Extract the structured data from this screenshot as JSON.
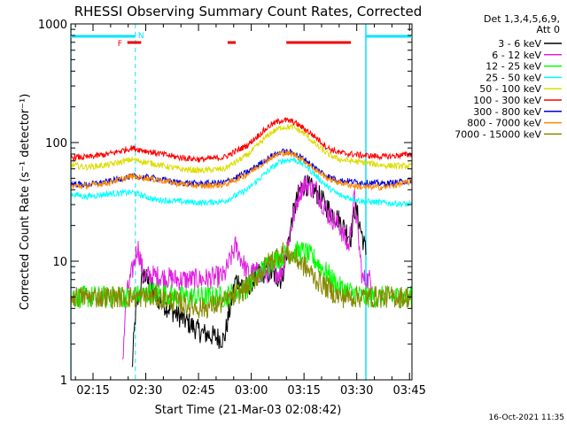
{
  "chart_data": {
    "type": "line",
    "title": "RHESSI Observing Summary Count Rates, Corrected",
    "xlabel": "Start Time (21-Mar-03 02:08:42)",
    "ylabel": "Corrected Count Rate (s⁻¹ detector⁻¹)",
    "xlim": [
      8.7,
      38.3
    ],
    "ylim": [
      1,
      1000
    ],
    "y_scale": "log",
    "x_ticks": [
      "02:15",
      "02:30",
      "02:45",
      "03:00",
      "03:15",
      "03:30",
      "03:45"
    ],
    "y_ticks": [
      "1",
      "10",
      "100",
      "1000"
    ],
    "legend_title": [
      "Det 1,3,4,5,6,9,",
      "Att 0"
    ],
    "timestamp": "16-Oct-2021 11:35",
    "flags": {
      "N_label": "N",
      "F_label": "F",
      "night": [
        [
          8.7,
          14.3
        ],
        [
          34.3,
          38.3
        ]
      ],
      "flare": [
        [
          13.6,
          14.8
        ],
        [
          22.3,
          23.0
        ],
        [
          27.4,
          33.0
        ]
      ],
      "vlines_solid": [
        8.7,
        34.3
      ],
      "vlines_dashed": [
        14.3,
        38.3
      ]
    },
    "series": [
      {
        "name": "3 - 6 keV",
        "color": "#000000",
        "x": [
          14.0,
          14.3,
          15.0,
          16.0,
          18.0,
          20.0,
          22.0,
          23.0,
          24.0,
          25.0,
          26.0,
          27.0,
          28.0,
          28.5,
          29.0,
          30.0,
          31.0,
          32.0,
          33.0,
          33.3,
          33.6,
          34.3
        ],
        "y": [
          1.2,
          3.5,
          8.0,
          5.0,
          3.5,
          2.5,
          2.2,
          7.0,
          6.0,
          8.0,
          8.0,
          7.0,
          25.0,
          38.0,
          45.0,
          38.0,
          28.0,
          22.0,
          16.0,
          28.0,
          24.0,
          12.0
        ]
      },
      {
        "name": "6 - 12 keV",
        "color": "#e020e0",
        "x": [
          13.2,
          13.5,
          14.0,
          14.5,
          15.0,
          16.0,
          18.0,
          20.0,
          22.0,
          23.0,
          24.0,
          25.0,
          26.0,
          27.0,
          27.5,
          28.5,
          29.0,
          30.0,
          31.0,
          32.0,
          32.8,
          33.3,
          34.0,
          34.9
        ],
        "y": [
          1.5,
          5.0,
          8.0,
          13.5,
          7.5,
          7.5,
          7.0,
          7.0,
          7.5,
          13.5,
          8.0,
          8.0,
          8.0,
          8.0,
          14.0,
          38.0,
          45.0,
          40.0,
          25.0,
          20.0,
          13.0,
          35.0,
          7.0,
          7.0
        ]
      },
      {
        "name": "12 - 25 keV",
        "color": "#00ff00",
        "x": [
          8.7,
          12.0,
          14.0,
          16.0,
          18.0,
          20.0,
          22.0,
          24.0,
          26.0,
          27.0,
          28.0,
          29.0,
          30.0,
          32.0,
          34.0,
          36.0,
          38.3
        ],
        "y": [
          5.0,
          5.0,
          5.0,
          5.5,
          5.0,
          5.0,
          5.0,
          6.0,
          10.0,
          11.0,
          12.0,
          12.0,
          10.0,
          6.0,
          5.0,
          5.0,
          5.0
        ]
      },
      {
        "name": "25 - 50 keV",
        "color": "#00ffff",
        "x": [
          8.7,
          10.0,
          12.0,
          14.0,
          16.0,
          18.0,
          20.0,
          22.0,
          24.0,
          26.0,
          27.0,
          28.0,
          29.0,
          30.0,
          31.0,
          32.0,
          34.0,
          36.0,
          38.3
        ],
        "y": [
          37.0,
          35.0,
          37.0,
          38.0,
          33.0,
          32.0,
          31.0,
          32.0,
          40.0,
          60.0,
          70.0,
          72.0,
          65.0,
          52.0,
          42.0,
          36.0,
          32.0,
          31.0,
          30.0
        ]
      },
      {
        "name": "50 - 100 keV",
        "color": "#dddd00",
        "x": [
          8.7,
          10.0,
          12.0,
          14.0,
          16.0,
          18.0,
          20.0,
          22.0,
          24.0,
          26.0,
          27.0,
          28.0,
          29.0,
          30.0,
          31.0,
          32.0,
          34.0,
          36.0,
          38.3
        ],
        "y": [
          65.0,
          62.0,
          65.0,
          72.0,
          66.0,
          60.0,
          58.0,
          60.0,
          78.0,
          120.0,
          135.0,
          135.0,
          118.0,
          95.0,
          80.0,
          72.0,
          68.0,
          64.0,
          63.0
        ]
      },
      {
        "name": "100 - 300 keV",
        "color": "#ff0000",
        "x": [
          8.7,
          10.0,
          12.0,
          14.0,
          16.0,
          18.0,
          20.0,
          22.0,
          24.0,
          26.0,
          27.0,
          28.0,
          29.0,
          30.0,
          31.0,
          32.0,
          34.0,
          36.0,
          38.3
        ],
        "y": [
          75.0,
          75.0,
          80.0,
          90.0,
          82.0,
          75.0,
          72.0,
          75.0,
          95.0,
          140.0,
          155.0,
          150.0,
          130.0,
          110.0,
          90.0,
          82.0,
          78.0,
          76.0,
          80.0
        ]
      },
      {
        "name": "300 - 800 keV",
        "color": "#0000dd",
        "x": [
          8.7,
          10.0,
          12.0,
          14.0,
          16.0,
          18.0,
          20.0,
          22.0,
          24.0,
          26.0,
          27.0,
          28.0,
          29.0,
          30.0,
          31.0,
          32.0,
          34.0,
          36.0,
          38.3
        ],
        "y": [
          45.0,
          44.0,
          47.0,
          52.0,
          50.0,
          46.0,
          45.0,
          46.0,
          56.0,
          76.0,
          84.0,
          82.0,
          72.0,
          60.0,
          52.0,
          48.0,
          46.0,
          45.0,
          48.0
        ]
      },
      {
        "name": "800 - 7000 keV",
        "color": "#ff8800",
        "x": [
          8.7,
          10.0,
          12.0,
          14.0,
          16.0,
          18.0,
          20.0,
          22.0,
          24.0,
          26.0,
          27.0,
          28.0,
          29.0,
          30.0,
          31.0,
          32.0,
          34.0,
          36.0,
          38.3
        ],
        "y": [
          43.0,
          43.0,
          46.0,
          52.0,
          49.0,
          45.0,
          43.0,
          44.0,
          54.0,
          74.0,
          82.0,
          80.0,
          70.0,
          58.0,
          50.0,
          46.0,
          42.0,
          42.0,
          47.0
        ]
      },
      {
        "name": "7000 - 15000 keV",
        "color": "#888800",
        "x": [
          8.7,
          12.0,
          14.0,
          16.0,
          18.0,
          20.0,
          22.0,
          24.0,
          26.0,
          27.0,
          28.0,
          29.0,
          30.0,
          32.0,
          34.0,
          36.0,
          38.3
        ],
        "y": [
          5.0,
          5.0,
          5.0,
          5.0,
          4.5,
          4.0,
          4.5,
          6.0,
          10.0,
          12.0,
          11.0,
          9.0,
          7.0,
          5.0,
          5.0,
          5.0,
          5.0
        ]
      }
    ]
  }
}
